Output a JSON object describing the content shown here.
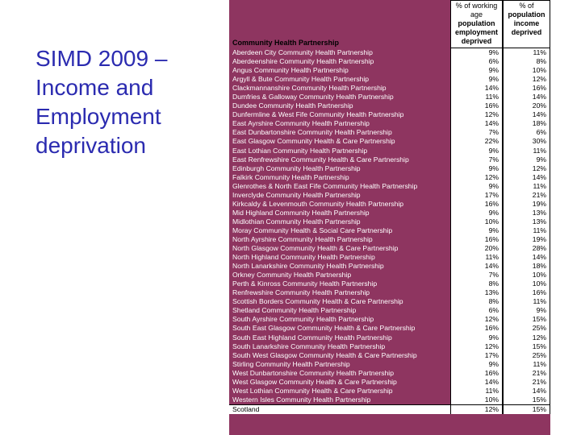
{
  "slide": {
    "title_lines": [
      "SIMD 2009 –",
      "Income and",
      "Employment",
      "deprivation"
    ]
  },
  "table": {
    "row_header": "Community Health Partnership",
    "col1_header_lines": [
      "% of working",
      "age",
      "population",
      "employment",
      "deprived"
    ],
    "col2_header_lines": [
      "% of",
      "population",
      "income",
      "deprived"
    ],
    "rows": [
      {
        "name": "Aberdeen City Community Health Partnership",
        "employment": "9%",
        "income": "11%"
      },
      {
        "name": "Aberdeenshire Community Health Partnership",
        "employment": "6%",
        "income": "8%"
      },
      {
        "name": "Angus Community Health Partnership",
        "employment": "9%",
        "income": "10%"
      },
      {
        "name": "Argyll & Bute Community Health Partnership",
        "employment": "9%",
        "income": "12%"
      },
      {
        "name": "Clackmannanshire Community Health Partnership",
        "employment": "14%",
        "income": "16%"
      },
      {
        "name": "Dumfries & Galloway Community Health Partnership",
        "employment": "11%",
        "income": "14%"
      },
      {
        "name": "Dundee Community Health Partnership",
        "employment": "16%",
        "income": "20%"
      },
      {
        "name": "Dunfermline & West Fife Community Health Partnership",
        "employment": "12%",
        "income": "14%"
      },
      {
        "name": "East Ayrshire Community Health Partnership",
        "employment": "14%",
        "income": "18%"
      },
      {
        "name": "East Dunbartonshire Community Health Partnership",
        "employment": "7%",
        "income": "6%"
      },
      {
        "name": "East Glasgow Community Health & Care Partnership",
        "employment": "22%",
        "income": "30%"
      },
      {
        "name": "East Lothian Community Health Partnership",
        "employment": "9%",
        "income": "11%"
      },
      {
        "name": "East Renfrewshire Community Health & Care Partnership",
        "employment": "7%",
        "income": "9%"
      },
      {
        "name": "Edinburgh Community Health Partnership",
        "employment": "9%",
        "income": "12%"
      },
      {
        "name": "Falkirk Community Health Partnership",
        "employment": "12%",
        "income": "14%"
      },
      {
        "name": "Glenrothes & North East Fife Community Health Partnership",
        "employment": "9%",
        "income": "11%"
      },
      {
        "name": "Inverclyde Community Health Partnership",
        "employment": "17%",
        "income": "21%"
      },
      {
        "name": "Kirkcaldy & Levenmouth Community Health Partnership",
        "employment": "16%",
        "income": "19%"
      },
      {
        "name": "Mid Highland Community Health Partnership",
        "employment": "9%",
        "income": "13%"
      },
      {
        "name": "Midlothian Community Health Partnership",
        "employment": "10%",
        "income": "13%"
      },
      {
        "name": "Moray Community Health & Social Care Partnership",
        "employment": "9%",
        "income": "11%"
      },
      {
        "name": "North Ayrshire Community Health Partnership",
        "employment": "16%",
        "income": "19%"
      },
      {
        "name": "North Glasgow Community Health & Care Partnership",
        "employment": "20%",
        "income": "28%"
      },
      {
        "name": "North Highland Community Health Partnership",
        "employment": "11%",
        "income": "14%"
      },
      {
        "name": "North Lanarkshire Community Health Partnership",
        "employment": "14%",
        "income": "18%"
      },
      {
        "name": "Orkney Community Health Partnership",
        "employment": "7%",
        "income": "10%"
      },
      {
        "name": "Perth & Kinross Community Health Partnership",
        "employment": "8%",
        "income": "10%"
      },
      {
        "name": "Renfrewshire Community Health Partnership",
        "employment": "13%",
        "income": "16%"
      },
      {
        "name": "Scottish Borders Community Health & Care Partnership",
        "employment": "8%",
        "income": "11%"
      },
      {
        "name": "Shetland Community Health Partnership",
        "employment": "6%",
        "income": "9%"
      },
      {
        "name": "South Ayrshire Community Health Partnership",
        "employment": "12%",
        "income": "15%"
      },
      {
        "name": "South East Glasgow Community Health & Care Partnership",
        "employment": "16%",
        "income": "25%"
      },
      {
        "name": "South East Highland Community Health Partnership",
        "employment": "9%",
        "income": "12%"
      },
      {
        "name": "South Lanarkshire Community Health Partnership",
        "employment": "12%",
        "income": "15%"
      },
      {
        "name": "South West Glasgow Community Health & Care Partnership",
        "employment": "17%",
        "income": "25%"
      },
      {
        "name": "Stirling Community Health Partnership",
        "employment": "9%",
        "income": "11%"
      },
      {
        "name": "West Dunbartonshire Community Health Partnership",
        "employment": "16%",
        "income": "21%"
      },
      {
        "name": "West Glasgow Community Health & Care Partnership",
        "employment": "14%",
        "income": "21%"
      },
      {
        "name": "West Lothian Community Health & Care Partnership",
        "employment": "11%",
        "income": "14%"
      },
      {
        "name": "Western Isles Community Health Partnership",
        "employment": "10%",
        "income": "15%"
      }
    ],
    "total": {
      "name": "Scotland",
      "employment": "12%",
      "income": "15%"
    }
  },
  "colors": {
    "title_text": "#2b2bb0",
    "table_background": "#8e3560"
  }
}
